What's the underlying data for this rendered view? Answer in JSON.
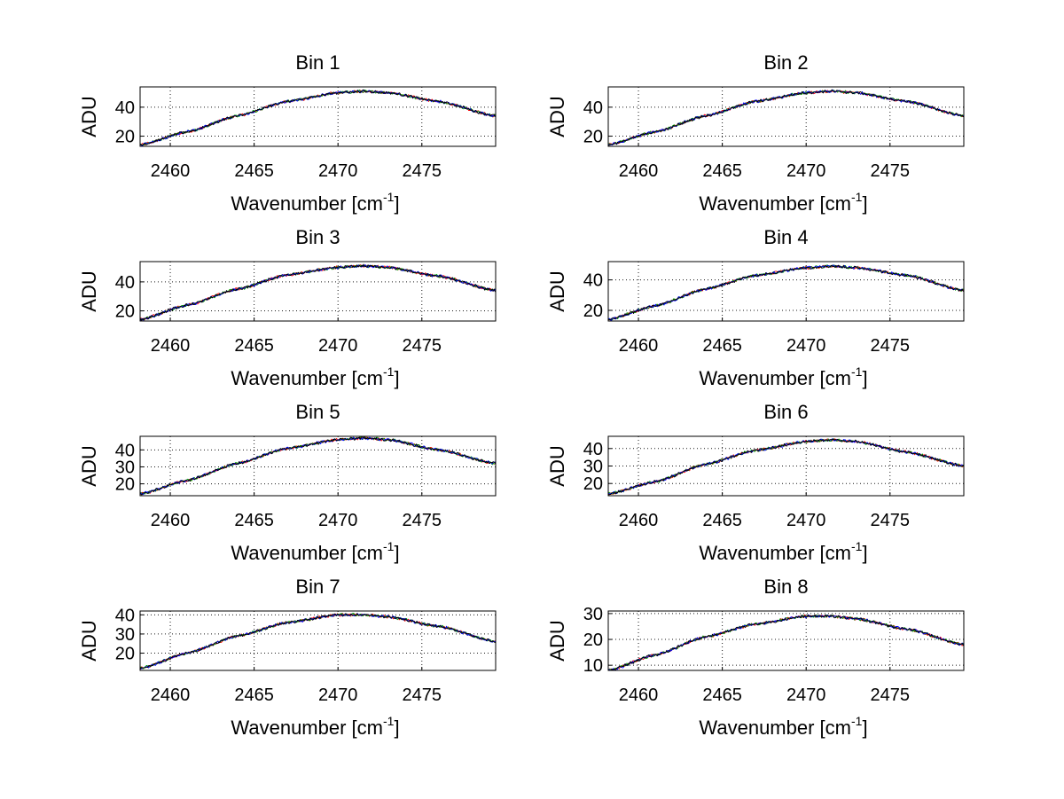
{
  "chart_data": [
    {
      "type": "line",
      "title": "Bin 1",
      "xlabel": "Wavenumber [cm",
      "xlabel_sup": "-1",
      "xlabel_end": "]",
      "ylabel": "ADU",
      "xlim": [
        2458.2,
        2479.4
      ],
      "ylim": [
        13,
        54
      ],
      "xticks": [
        2460,
        2465,
        2470,
        2475
      ],
      "yticks": [
        20,
        40
      ],
      "grid": true,
      "curve": {
        "x": [
          2458.2,
          2461,
          2464,
          2467,
          2470,
          2471.5,
          2473,
          2476,
          2479.4
        ],
        "y": [
          14,
          23,
          34,
          44,
          50,
          51,
          50,
          44,
          34
        ]
      },
      "series": [
        {
          "name": "red",
          "color": "#ff0000"
        },
        {
          "name": "green",
          "color": "#00a000"
        },
        {
          "name": "blue",
          "color": "#0000ff"
        },
        {
          "name": "black",
          "color": "#000000"
        }
      ]
    },
    {
      "type": "line",
      "title": "Bin 2",
      "xlabel": "Wavenumber [cm",
      "xlabel_sup": "-1",
      "xlabel_end": "]",
      "ylabel": "ADU",
      "xlim": [
        2458.2,
        2479.4
      ],
      "ylim": [
        13,
        54
      ],
      "xticks": [
        2460,
        2465,
        2470,
        2475
      ],
      "yticks": [
        20,
        40
      ],
      "grid": true,
      "curve": {
        "x": [
          2458.2,
          2461,
          2464,
          2467,
          2470,
          2471.5,
          2473,
          2476,
          2479.4
        ],
        "y": [
          14,
          23,
          34,
          44,
          50,
          51,
          50,
          44,
          34
        ]
      },
      "series": [
        {
          "name": "red",
          "color": "#ff0000"
        },
        {
          "name": "green",
          "color": "#00a000"
        },
        {
          "name": "blue",
          "color": "#0000ff"
        },
        {
          "name": "black",
          "color": "#000000"
        }
      ]
    },
    {
      "type": "line",
      "title": "Bin 3",
      "xlabel": "Wavenumber [cm",
      "xlabel_sup": "-1",
      "xlabel_end": "]",
      "ylabel": "ADU",
      "xlim": [
        2458.2,
        2479.4
      ],
      "ylim": [
        13,
        54
      ],
      "xticks": [
        2460,
        2465,
        2470,
        2475
      ],
      "yticks": [
        20,
        40
      ],
      "grid": true,
      "curve": {
        "x": [
          2458.2,
          2461,
          2464,
          2467,
          2470,
          2471.5,
          2473,
          2476,
          2479.4
        ],
        "y": [
          14,
          24,
          35,
          45,
          50,
          51,
          50,
          44,
          34
        ]
      },
      "series": [
        {
          "name": "red",
          "color": "#ff0000"
        },
        {
          "name": "green",
          "color": "#00a000"
        },
        {
          "name": "blue",
          "color": "#0000ff"
        },
        {
          "name": "black",
          "color": "#000000"
        }
      ]
    },
    {
      "type": "line",
      "title": "Bin 4",
      "xlabel": "Wavenumber [cm",
      "xlabel_sup": "-1",
      "xlabel_end": "]",
      "ylabel": "ADU",
      "xlim": [
        2458.2,
        2479.4
      ],
      "ylim": [
        13,
        52
      ],
      "xticks": [
        2460,
        2465,
        2470,
        2475
      ],
      "yticks": [
        20,
        40
      ],
      "grid": true,
      "curve": {
        "x": [
          2458.2,
          2461,
          2464,
          2467,
          2470,
          2471.5,
          2473,
          2476,
          2479.4
        ],
        "y": [
          14,
          23,
          34,
          43,
          48,
          49,
          48,
          43,
          33
        ]
      },
      "series": [
        {
          "name": "red",
          "color": "#ff0000"
        },
        {
          "name": "green",
          "color": "#00a000"
        },
        {
          "name": "blue",
          "color": "#0000ff"
        },
        {
          "name": "black",
          "color": "#000000"
        }
      ]
    },
    {
      "type": "line",
      "title": "Bin 5",
      "xlabel": "Wavenumber [cm",
      "xlabel_sup": "-1",
      "xlabel_end": "]",
      "ylabel": "ADU",
      "xlim": [
        2458.2,
        2479.4
      ],
      "ylim": [
        13,
        48
      ],
      "xticks": [
        2460,
        2465,
        2470,
        2475
      ],
      "yticks": [
        20,
        30,
        40
      ],
      "grid": true,
      "curve": {
        "x": [
          2458.2,
          2461,
          2464,
          2467,
          2470,
          2471.5,
          2473,
          2476,
          2479.4
        ],
        "y": [
          14,
          22,
          32,
          41,
          46,
          47,
          46,
          40,
          32
        ]
      },
      "series": [
        {
          "name": "red",
          "color": "#ff0000"
        },
        {
          "name": "green",
          "color": "#00a000"
        },
        {
          "name": "blue",
          "color": "#0000ff"
        },
        {
          "name": "black",
          "color": "#000000"
        }
      ]
    },
    {
      "type": "line",
      "title": "Bin 6",
      "xlabel": "Wavenumber [cm",
      "xlabel_sup": "-1",
      "xlabel_end": "]",
      "ylabel": "ADU",
      "xlim": [
        2458.2,
        2479.4
      ],
      "ylim": [
        13,
        47
      ],
      "xticks": [
        2460,
        2465,
        2470,
        2475
      ],
      "yticks": [
        20,
        30,
        40
      ],
      "grid": true,
      "curve": {
        "x": [
          2458.2,
          2461,
          2464,
          2467,
          2470,
          2471.5,
          2473,
          2476,
          2479.4
        ],
        "y": [
          14,
          21,
          31,
          39,
          44,
          45,
          44,
          38,
          30
        ]
      },
      "series": [
        {
          "name": "red",
          "color": "#ff0000"
        },
        {
          "name": "green",
          "color": "#00a000"
        },
        {
          "name": "blue",
          "color": "#0000ff"
        },
        {
          "name": "black",
          "color": "#000000"
        }
      ]
    },
    {
      "type": "line",
      "title": "Bin 7",
      "xlabel": "Wavenumber [cm",
      "xlabel_sup": "-1",
      "xlabel_end": "]",
      "ylabel": "ADU",
      "xlim": [
        2458.2,
        2479.4
      ],
      "ylim": [
        11,
        42
      ],
      "xticks": [
        2460,
        2465,
        2470,
        2475
      ],
      "yticks": [
        20,
        30,
        40
      ],
      "grid": true,
      "curve": {
        "x": [
          2458.2,
          2461,
          2464,
          2467,
          2470,
          2471.5,
          2473,
          2476,
          2479.4
        ],
        "y": [
          12,
          20,
          29,
          36,
          40,
          40,
          39,
          34,
          26
        ]
      },
      "series": [
        {
          "name": "red",
          "color": "#ff0000"
        },
        {
          "name": "green",
          "color": "#00a000"
        },
        {
          "name": "blue",
          "color": "#0000ff"
        },
        {
          "name": "black",
          "color": "#000000"
        }
      ]
    },
    {
      "type": "line",
      "title": "Bin 8",
      "xlabel": "Wavenumber [cm",
      "xlabel_sup": "-1",
      "xlabel_end": "]",
      "ylabel": "ADU",
      "xlim": [
        2458.2,
        2479.4
      ],
      "ylim": [
        8,
        31
      ],
      "xticks": [
        2460,
        2465,
        2470,
        2475
      ],
      "yticks": [
        10,
        20,
        30
      ],
      "grid": true,
      "curve": {
        "x": [
          2458.2,
          2461,
          2464,
          2467,
          2470,
          2471.5,
          2473,
          2476,
          2479.4
        ],
        "y": [
          8,
          14,
          21,
          26,
          29,
          29,
          28,
          24,
          18
        ]
      },
      "series": [
        {
          "name": "red",
          "color": "#ff0000"
        },
        {
          "name": "green",
          "color": "#00a000"
        },
        {
          "name": "blue",
          "color": "#0000ff"
        },
        {
          "name": "black",
          "color": "#000000"
        }
      ]
    }
  ]
}
